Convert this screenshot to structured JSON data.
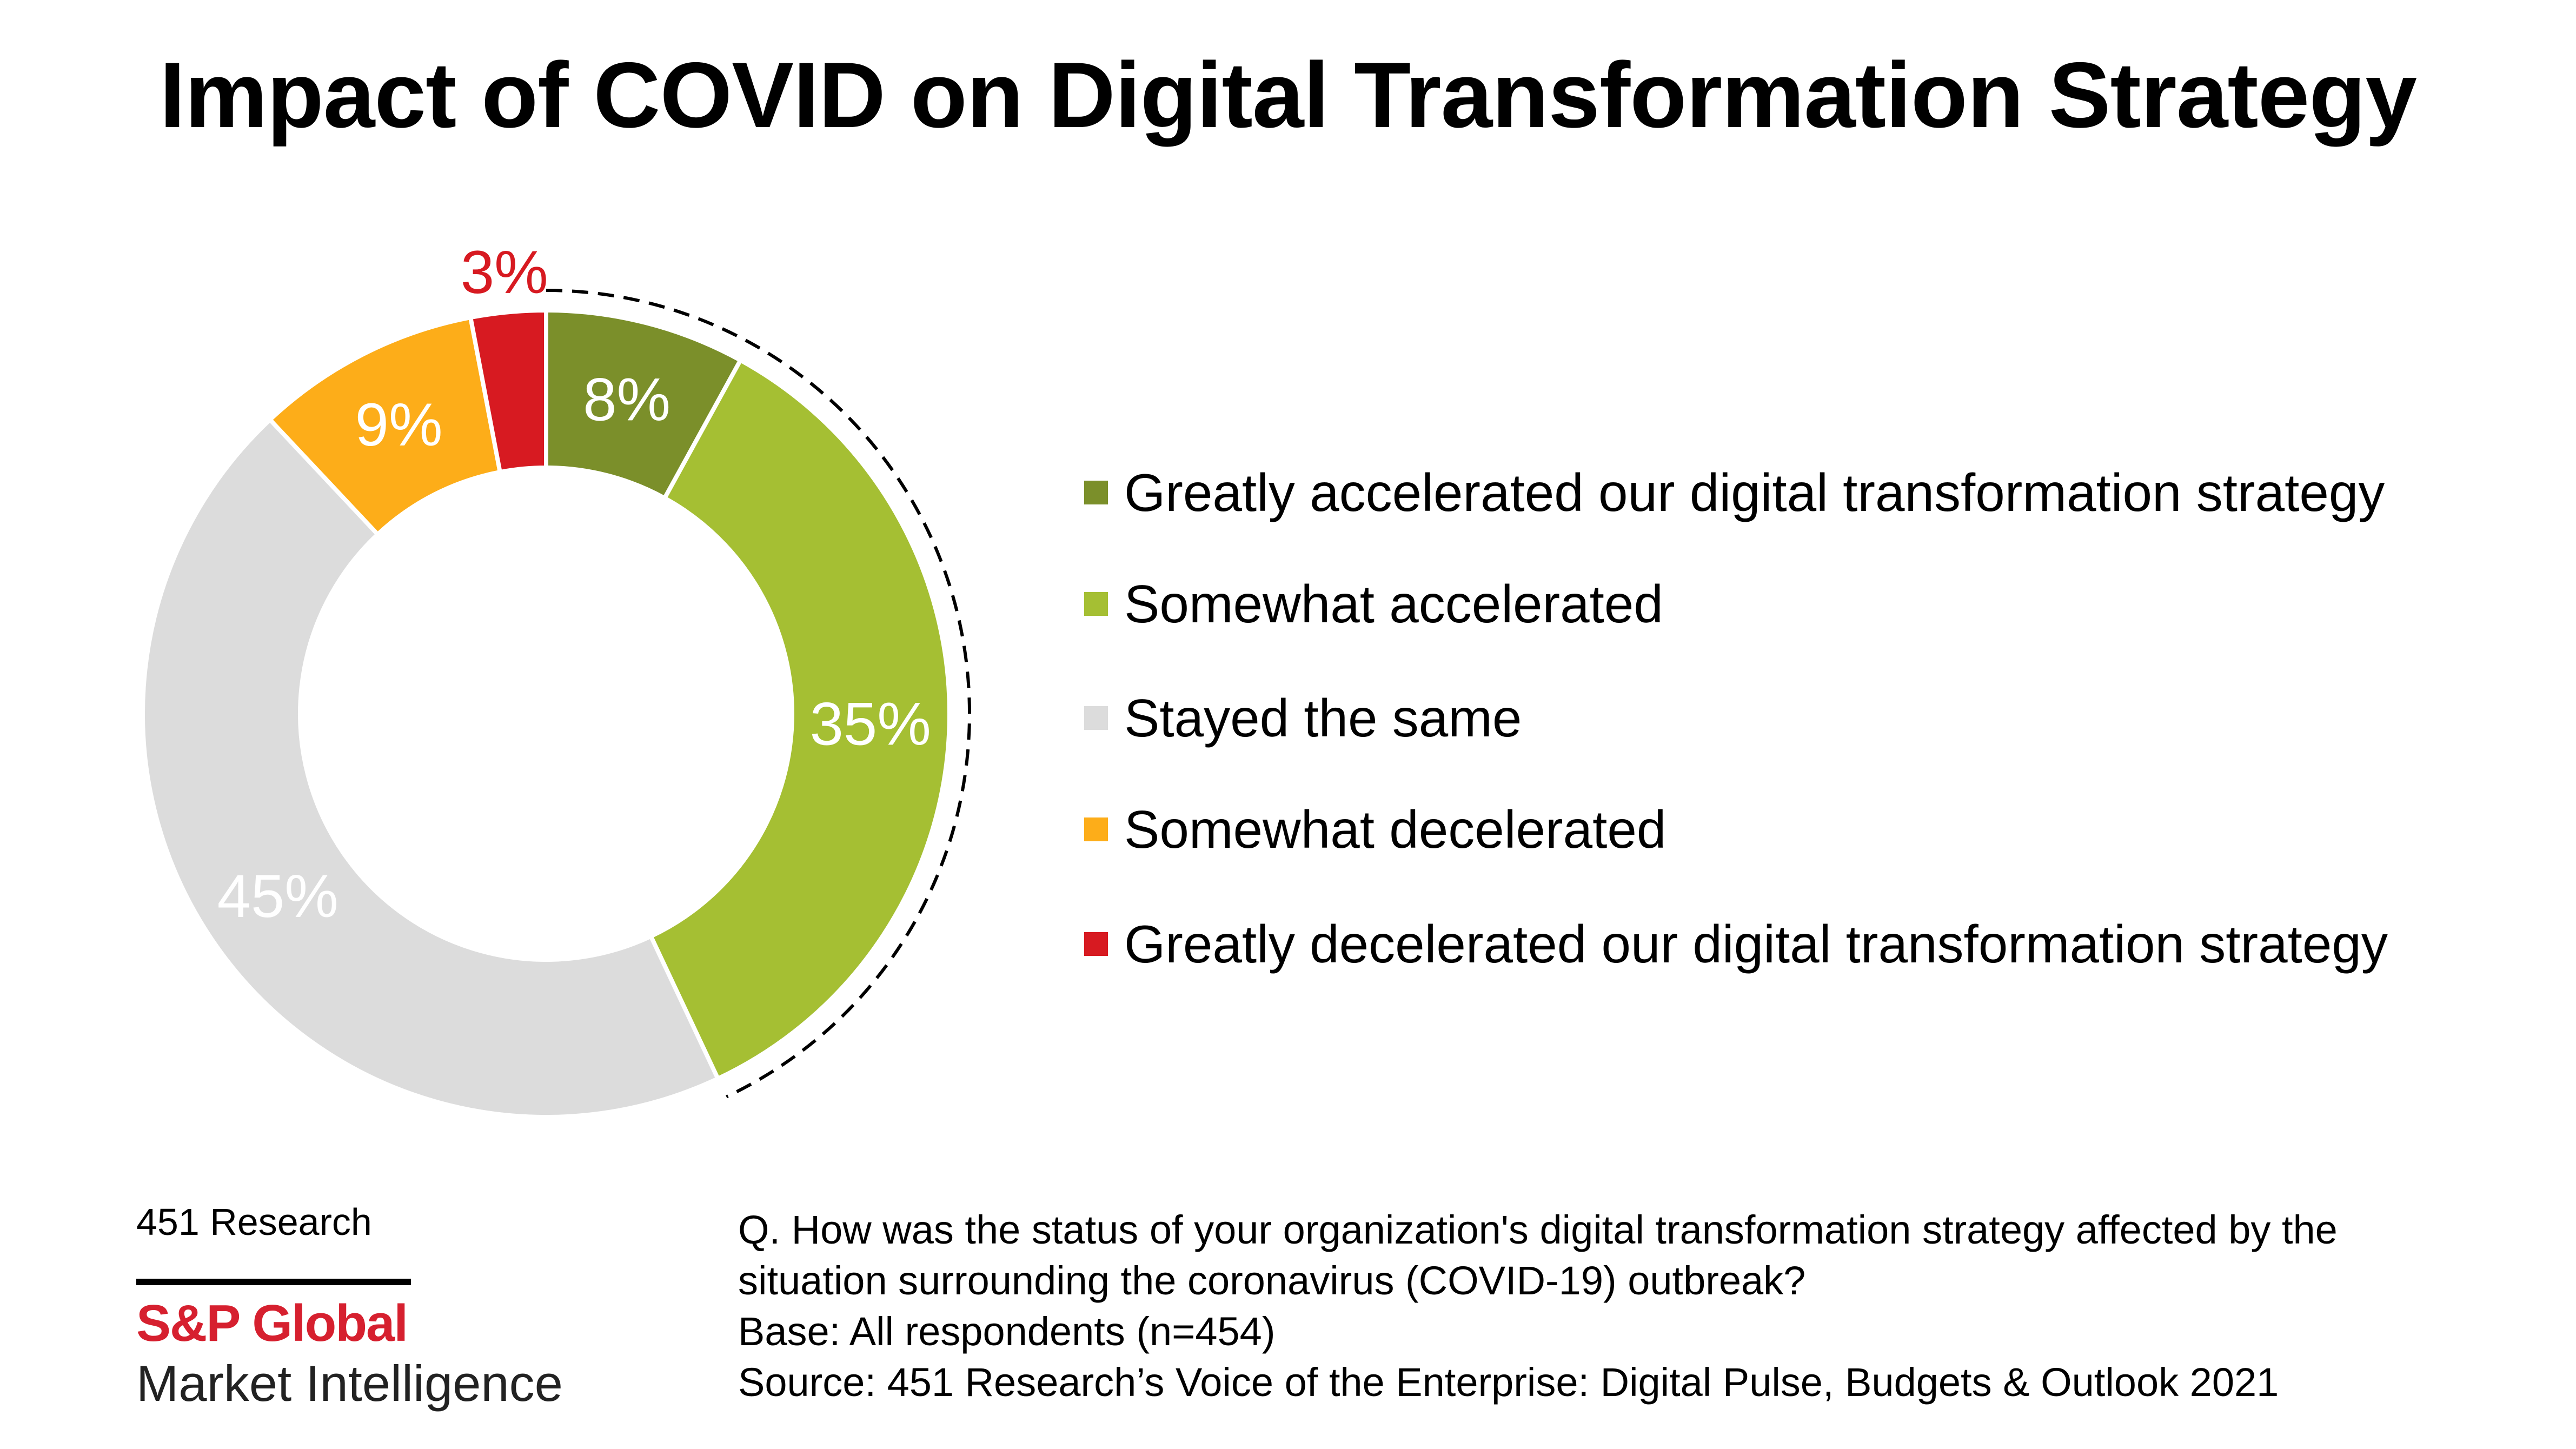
{
  "chart_data": {
    "type": "pie",
    "variant": "donut",
    "title": "Impact of COVID on Digital Transformation Strategy",
    "start": "top",
    "direction": "clockwise",
    "categories": [
      "Greatly accelerated our digital transformation strategy",
      "Somewhat accelerated",
      "Stayed the same",
      "Somewhat decelerated",
      "Greatly decelerated our digital transformation strategy"
    ],
    "values": [
      8,
      35,
      45,
      9,
      3
    ],
    "data_labels": [
      "8%",
      "35%",
      "45%",
      "9%",
      "3%"
    ],
    "colors": [
      "#7b8f2a",
      "#a5bf33",
      "#dcdcdc",
      "#fdad19",
      "#d71a21"
    ],
    "label_colors": [
      "#ffffff",
      "#ffffff",
      "#ffffff",
      "#ffffff",
      "#d71a21"
    ],
    "highlight": {
      "style": "dashed-arc",
      "categories": [
        "Greatly accelerated our digital transformation strategy",
        "Somewhat accelerated"
      ]
    },
    "legend_position": "right"
  },
  "footer": {
    "brand_small": "451 Research",
    "brand_name": "S&P Global",
    "brand_sub": "Market Intelligence",
    "brand_color": "#d6202f",
    "notes": [
      "Q. How was the status of your organization's digital transformation strategy affected by the",
      "situation surrounding the coronavirus (COVID-19) outbreak?",
      "Base: All respondents (n=454)",
      "Source: 451 Research’s Voice of the Enterprise: Digital Pulse, Budgets & Outlook 2021"
    ]
  }
}
